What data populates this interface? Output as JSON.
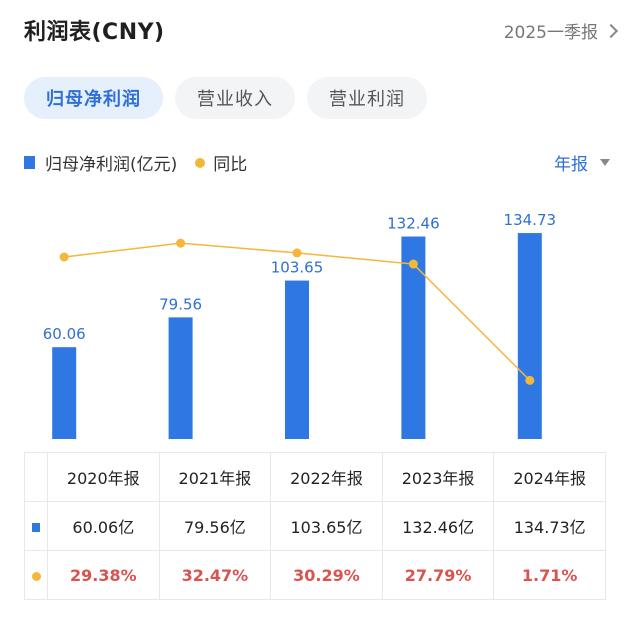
{
  "header": {
    "title": "利润表(CNY)",
    "period": "2025一季报"
  },
  "tabs": [
    "归母净利润",
    "营业收入",
    "营业利润"
  ],
  "legend": {
    "bar_label": "归母净利润(亿元)",
    "line_label": "同比"
  },
  "frequency": "年报",
  "colors": {
    "bar": "#2f78e4",
    "line": "#f4b73a",
    "accent": "#2f6fd6",
    "negative": "#d9534f"
  },
  "chart_data": {
    "type": "bar",
    "categories": [
      "2020年报",
      "2021年报",
      "2022年报",
      "2023年报",
      "2024年报"
    ],
    "series": [
      {
        "name": "归母净利润(亿元)",
        "type": "bar",
        "values": [
          60.06,
          79.56,
          103.65,
          132.46,
          134.73
        ],
        "labels": [
          "60.06",
          "79.56",
          "103.65",
          "132.46",
          "134.73"
        ]
      },
      {
        "name": "同比",
        "type": "line",
        "unit": "%",
        "values": [
          29.38,
          32.47,
          30.29,
          27.79,
          1.71
        ]
      }
    ],
    "grid": false
  },
  "table": {
    "headers": [
      "2020年报",
      "2021年报",
      "2022年报",
      "2023年报",
      "2024年报"
    ],
    "profit": [
      "60.06亿",
      "79.56亿",
      "103.65亿",
      "132.46亿",
      "134.73亿"
    ],
    "yoy": [
      "29.38%",
      "32.47%",
      "30.29%",
      "27.79%",
      "1.71%"
    ]
  }
}
